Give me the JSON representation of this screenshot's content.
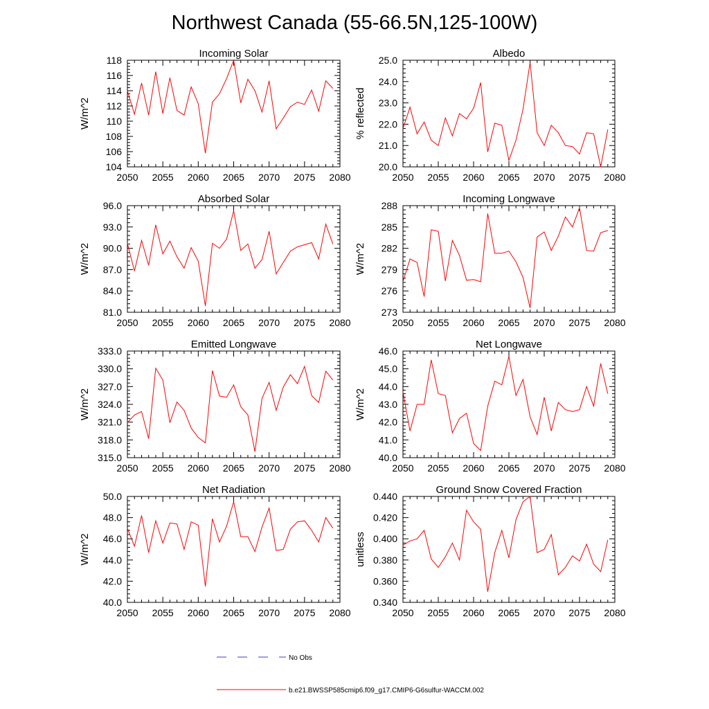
{
  "figure": {
    "title": "Northwest Canada (55-66.5N,125-100W)"
  },
  "legend": {
    "obs_label": "No Obs",
    "obs_color": "#3c3cc8",
    "model_label": "b.e21.BWSSP585cmip6.f09_g17.CMIP6-G6sulfur-WACCM.002",
    "model_color": "#ff0000"
  },
  "chart_data": [
    {
      "type": "line",
      "title": "Incoming Solar",
      "ylabel": "W/m^2",
      "xlim": [
        2050,
        2080
      ],
      "ylim": [
        104,
        118
      ],
      "x_ticks": [
        2050,
        2055,
        2060,
        2065,
        2070,
        2075,
        2080
      ],
      "y_ticks": [
        "104",
        "106",
        "108",
        "110",
        "112",
        "114",
        "116",
        "118"
      ],
      "x": [
        2050,
        2051,
        2052,
        2053,
        2054,
        2055,
        2056,
        2057,
        2058,
        2059,
        2060,
        2061,
        2062,
        2063,
        2064,
        2065,
        2066,
        2067,
        2068,
        2069,
        2070,
        2071,
        2072,
        2073,
        2074,
        2075,
        2076,
        2077,
        2078,
        2079
      ],
      "series": [
        {
          "color": "#ff0000",
          "values": [
            114.0,
            110.9,
            115.0,
            110.8,
            116.5,
            111.0,
            115.7,
            111.4,
            110.8,
            114.5,
            112.3,
            105.8,
            112.5,
            113.6,
            115.6,
            118.0,
            112.4,
            115.5,
            114.0,
            111.2,
            115.3,
            109.0,
            110.4,
            111.9,
            112.5,
            112.2,
            114.1,
            111.3,
            115.3,
            114.3
          ]
        }
      ]
    },
    {
      "type": "line",
      "title": "Albedo",
      "ylabel": "% reflected",
      "xlim": [
        2050,
        2080
      ],
      "ylim": [
        20.0,
        25.0
      ],
      "x_ticks": [
        2050,
        2055,
        2060,
        2065,
        2070,
        2075,
        2080
      ],
      "y_ticks": [
        "20.0",
        "21.0",
        "22.0",
        "23.0",
        "24.0",
        "25.0"
      ],
      "x": [
        2050,
        2051,
        2052,
        2053,
        2054,
        2055,
        2056,
        2057,
        2058,
        2059,
        2060,
        2061,
        2062,
        2063,
        2064,
        2065,
        2066,
        2067,
        2068,
        2069,
        2070,
        2071,
        2072,
        2073,
        2074,
        2075,
        2076,
        2077,
        2078,
        2079
      ],
      "series": [
        {
          "color": "#ff0000",
          "values": [
            21.8,
            22.8,
            21.55,
            22.1,
            21.25,
            21.0,
            22.3,
            21.45,
            22.5,
            22.25,
            22.75,
            23.95,
            20.7,
            22.05,
            21.95,
            20.3,
            21.25,
            22.7,
            24.9,
            21.6,
            21.0,
            21.95,
            21.6,
            21.0,
            20.95,
            20.6,
            21.6,
            21.55,
            20.0,
            21.75
          ]
        }
      ]
    },
    {
      "type": "line",
      "title": "Absorbed Solar",
      "ylabel": "W/m^2",
      "xlim": [
        2050,
        2080
      ],
      "ylim": [
        81.0,
        96.0
      ],
      "x_ticks": [
        2050,
        2055,
        2060,
        2065,
        2070,
        2075,
        2080
      ],
      "y_ticks": [
        "81.0",
        "84.0",
        "87.0",
        "90.0",
        "93.0",
        "96.0"
      ],
      "x": [
        2050,
        2051,
        2052,
        2053,
        2054,
        2055,
        2056,
        2057,
        2058,
        2059,
        2060,
        2061,
        2062,
        2063,
        2064,
        2065,
        2066,
        2067,
        2068,
        2069,
        2070,
        2071,
        2072,
        2073,
        2074,
        2075,
        2076,
        2077,
        2078,
        2079
      ],
      "series": [
        {
          "color": "#ff0000",
          "values": [
            90.7,
            86.8,
            91.1,
            87.6,
            93.3,
            89.2,
            91.0,
            88.8,
            87.2,
            90.1,
            88.2,
            81.9,
            90.7,
            90.0,
            91.3,
            95.3,
            89.7,
            90.6,
            87.2,
            88.4,
            92.4,
            86.4,
            88.0,
            89.6,
            90.2,
            90.5,
            90.8,
            88.5,
            93.4,
            90.6
          ]
        }
      ]
    },
    {
      "type": "line",
      "title": "Incoming Longwave",
      "ylabel": "W/m^2",
      "xlim": [
        2050,
        2080
      ],
      "ylim": [
        273,
        288
      ],
      "x_ticks": [
        2050,
        2055,
        2060,
        2065,
        2070,
        2075,
        2080
      ],
      "y_ticks": [
        "273",
        "276",
        "279",
        "282",
        "285",
        "288"
      ],
      "x": [
        2050,
        2051,
        2052,
        2053,
        2054,
        2055,
        2056,
        2057,
        2058,
        2059,
        2060,
        2061,
        2062,
        2063,
        2064,
        2065,
        2066,
        2067,
        2068,
        2069,
        2070,
        2071,
        2072,
        2073,
        2074,
        2075,
        2076,
        2077,
        2078,
        2079
      ],
      "series": [
        {
          "color": "#ff0000",
          "values": [
            277.3,
            280.5,
            280.0,
            275.2,
            284.6,
            284.4,
            277.4,
            283.1,
            281.0,
            277.5,
            277.6,
            277.3,
            286.9,
            281.3,
            281.3,
            281.6,
            280.1,
            277.9,
            273.6,
            283.6,
            284.3,
            281.7,
            283.7,
            286.4,
            285.0,
            287.7,
            281.7,
            281.6,
            284.2,
            284.5
          ]
        }
      ]
    },
    {
      "type": "line",
      "title": "Emitted Longwave",
      "ylabel": "W/m^2",
      "xlim": [
        2050,
        2080
      ],
      "ylim": [
        315.0,
        333.0
      ],
      "x_ticks": [
        2050,
        2055,
        2060,
        2065,
        2070,
        2075,
        2080
      ],
      "y_ticks": [
        "315.0",
        "318.0",
        "321.0",
        "324.0",
        "327.0",
        "330.0",
        "333.0"
      ],
      "x": [
        2050,
        2051,
        2052,
        2053,
        2054,
        2055,
        2056,
        2057,
        2058,
        2059,
        2060,
        2061,
        2062,
        2063,
        2064,
        2065,
        2066,
        2067,
        2068,
        2069,
        2070,
        2071,
        2072,
        2073,
        2074,
        2075,
        2076,
        2077,
        2078,
        2079
      ],
      "series": [
        {
          "color": "#ff0000",
          "values": [
            320.9,
            322.2,
            322.8,
            318.2,
            330.1,
            328.1,
            320.9,
            324.4,
            323.0,
            320.0,
            318.4,
            317.5,
            329.7,
            325.4,
            325.2,
            327.3,
            323.6,
            322.2,
            316.0,
            325.0,
            327.7,
            323.0,
            326.9,
            329.0,
            327.5,
            330.4,
            325.5,
            324.3,
            329.6,
            328.1
          ]
        }
      ]
    },
    {
      "type": "line",
      "title": "Net Longwave",
      "ylabel": "W/m^2",
      "xlim": [
        2050,
        2080
      ],
      "ylim": [
        40.0,
        46.0
      ],
      "x_ticks": [
        2050,
        2055,
        2060,
        2065,
        2070,
        2075,
        2080
      ],
      "y_ticks": [
        "40.0",
        "41.0",
        "42.0",
        "43.0",
        "44.0",
        "45.0",
        "46.0"
      ],
      "x": [
        2050,
        2051,
        2052,
        2053,
        2054,
        2055,
        2056,
        2057,
        2058,
        2059,
        2060,
        2061,
        2062,
        2063,
        2064,
        2065,
        2066,
        2067,
        2068,
        2069,
        2070,
        2071,
        2072,
        2073,
        2074,
        2075,
        2076,
        2077,
        2078,
        2079
      ],
      "series": [
        {
          "color": "#ff0000",
          "values": [
            43.7,
            41.5,
            43.0,
            43.0,
            45.5,
            43.6,
            43.5,
            41.4,
            42.2,
            42.5,
            40.8,
            40.4,
            42.9,
            44.3,
            44.1,
            45.7,
            43.5,
            44.4,
            42.3,
            41.3,
            43.4,
            41.5,
            43.1,
            42.7,
            42.6,
            42.7,
            44.0,
            42.9,
            45.3,
            43.6
          ]
        }
      ]
    },
    {
      "type": "line",
      "title": "Net Radiation",
      "ylabel": "W/m^2",
      "xlim": [
        2050,
        2080
      ],
      "ylim": [
        40.0,
        50.0
      ],
      "x_ticks": [
        2050,
        2055,
        2060,
        2065,
        2070,
        2075,
        2080
      ],
      "y_ticks": [
        "40.0",
        "42.0",
        "44.0",
        "46.0",
        "48.0",
        "50.0"
      ],
      "x": [
        2050,
        2051,
        2052,
        2053,
        2054,
        2055,
        2056,
        2057,
        2058,
        2059,
        2060,
        2061,
        2062,
        2063,
        2064,
        2065,
        2066,
        2067,
        2068,
        2069,
        2070,
        2071,
        2072,
        2073,
        2074,
        2075,
        2076,
        2077,
        2078,
        2079
      ],
      "series": [
        {
          "color": "#ff0000",
          "values": [
            47.0,
            45.3,
            48.2,
            44.7,
            47.7,
            45.6,
            47.5,
            47.4,
            45.0,
            47.6,
            47.3,
            41.5,
            47.9,
            45.7,
            47.2,
            49.5,
            46.2,
            46.2,
            44.8,
            47.1,
            48.9,
            44.9,
            45.0,
            46.9,
            47.6,
            47.7,
            46.8,
            45.7,
            48.0,
            47.0
          ]
        }
      ]
    },
    {
      "type": "line",
      "title": "Ground Snow Covered Fraction",
      "ylabel": "unitless",
      "xlim": [
        2050,
        2080
      ],
      "ylim": [
        0.34,
        0.44
      ],
      "x_ticks": [
        2050,
        2055,
        2060,
        2065,
        2070,
        2075,
        2080
      ],
      "y_ticks": [
        "0.340",
        "0.360",
        "0.380",
        "0.400",
        "0.420",
        "0.440"
      ],
      "x": [
        2050,
        2051,
        2052,
        2053,
        2054,
        2055,
        2056,
        2057,
        2058,
        2059,
        2060,
        2061,
        2062,
        2063,
        2064,
        2065,
        2066,
        2067,
        2068,
        2069,
        2070,
        2071,
        2072,
        2073,
        2074,
        2075,
        2076,
        2077,
        2078,
        2079
      ],
      "series": [
        {
          "color": "#ff0000",
          "values": [
            0.394,
            0.398,
            0.4,
            0.408,
            0.381,
            0.373,
            0.383,
            0.396,
            0.38,
            0.427,
            0.416,
            0.409,
            0.35,
            0.387,
            0.408,
            0.382,
            0.418,
            0.435,
            0.44,
            0.387,
            0.39,
            0.404,
            0.366,
            0.373,
            0.384,
            0.379,
            0.395,
            0.376,
            0.369,
            0.399
          ]
        }
      ]
    }
  ]
}
